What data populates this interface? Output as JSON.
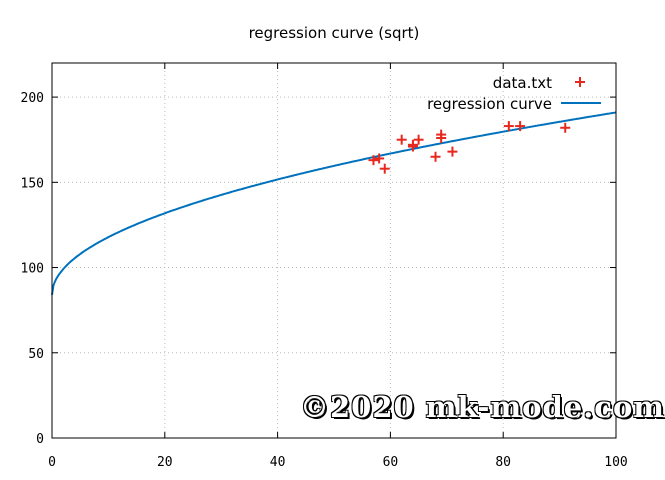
{
  "chart_data": {
    "type": "scatter",
    "title": "regression curve (sqrt)",
    "xlabel": "",
    "ylabel": "",
    "xlim": [
      0,
      100
    ],
    "ylim": [
      0,
      220
    ],
    "xticks": [
      0,
      20,
      40,
      60,
      80,
      100
    ],
    "yticks": [
      0,
      50,
      100,
      150,
      200
    ],
    "grid": true,
    "legend_position": "top-right",
    "series": [
      {
        "name": "data.txt",
        "kind": "points",
        "marker": "+",
        "color": "#e8281e",
        "points": [
          [
            57,
            163
          ],
          [
            58,
            164
          ],
          [
            59,
            158
          ],
          [
            62,
            175
          ],
          [
            64,
            171
          ],
          [
            64,
            172
          ],
          [
            65,
            175
          ],
          [
            68,
            165
          ],
          [
            69,
            176
          ],
          [
            69,
            178
          ],
          [
            71,
            168
          ],
          [
            81,
            183
          ],
          [
            83,
            183
          ],
          [
            91,
            182
          ]
        ]
      },
      {
        "name": "regression curve",
        "kind": "line",
        "color": "#0072bd",
        "formula": "84 + 10.7*sqrt(x)",
        "a": 84,
        "b": 10.7
      }
    ]
  },
  "watermark": "©2020 mk-mode.com"
}
